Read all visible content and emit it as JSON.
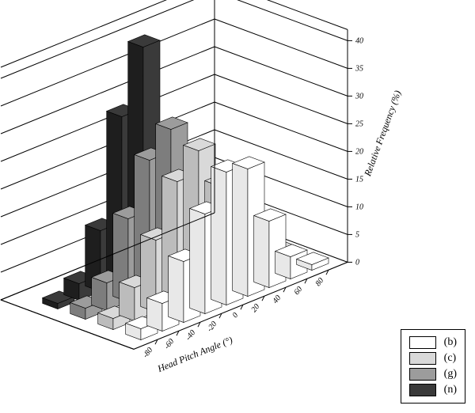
{
  "chart": {
    "type": "bar3d",
    "background_color": "#ffffff",
    "stroke_color": "#000000",
    "x_axis": {
      "title": "Head Pitch Angle (°)",
      "ticks": [
        80,
        60,
        40,
        20,
        0,
        -20,
        -40,
        -60,
        -80
      ],
      "bin_centers": [
        80,
        60,
        40,
        20,
        0,
        -20,
        -40,
        -60,
        -80
      ],
      "title_fontsize": 12,
      "tick_fontsize": 10
    },
    "z_axis": {
      "title": "Relative Frequency (%)",
      "ticks": [
        0,
        5,
        10,
        15,
        20,
        25,
        30,
        35,
        40
      ],
      "range": [
        0,
        42
      ],
      "title_fontsize": 12,
      "tick_fontsize": 10
    },
    "series": [
      {
        "label": "(b)",
        "fill": "#ffffff",
        "shade": "#e8e8e8",
        "values": [
          1,
          4,
          12,
          23,
          24,
          18,
          11,
          5,
          2
        ]
      },
      {
        "label": "(c)",
        "fill": "#d9d9d9",
        "shade": "#bcbcbc",
        "values": [
          1,
          3,
          9,
          18,
          26,
          22,
          13,
          6,
          2
        ]
      },
      {
        "label": "(g)",
        "fill": "#9c9c9c",
        "shade": "#7d7d7d",
        "values": [
          1,
          2,
          7,
          16,
          28,
          24,
          15,
          5,
          2
        ]
      },
      {
        "label": "(n)",
        "fill": "#3a3a3a",
        "shade": "#1e1e1e",
        "values": [
          0,
          1,
          3,
          10,
          41,
          30,
          11,
          3,
          1
        ]
      }
    ]
  },
  "legend_items": [
    {
      "label": "(b)",
      "fill": "#ffffff"
    },
    {
      "label": "(c)",
      "fill": "#d9d9d9"
    },
    {
      "label": "(g)",
      "fill": "#9c9c9c"
    },
    {
      "label": "(n)",
      "fill": "#3a3a3a"
    }
  ]
}
